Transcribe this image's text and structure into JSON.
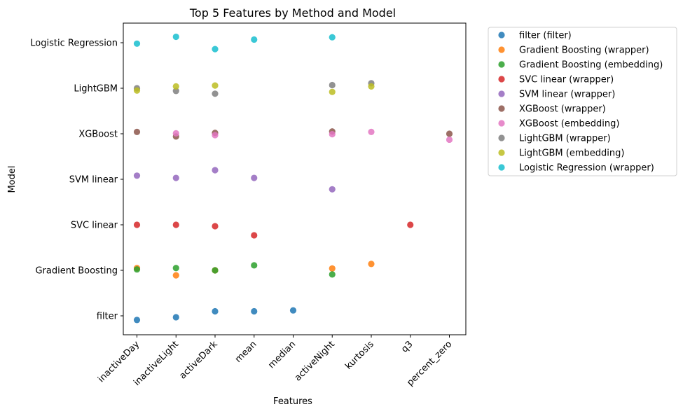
{
  "chart_data": {
    "type": "scatter",
    "title": "Top 5 Features by Method and Model",
    "xlabel": "Features",
    "ylabel": "Model",
    "x_categories": [
      "inactiveDay",
      "inactiveLight",
      "activeDark",
      "mean",
      "median",
      "activeNight",
      "kurtosis",
      "q3",
      "percent_zero"
    ],
    "y_categories": [
      "filter",
      "Gradient Boosting",
      "SVC linear",
      "SVM linear",
      "XGBoost",
      "LightGBM",
      "Logistic Regression"
    ],
    "grid": false,
    "legend_position": "outside right",
    "series": [
      {
        "name": "filter (filter)",
        "color": "#1f77b4",
        "points": [
          {
            "x": "inactiveDay",
            "y": "filter",
            "jitter": -0.09
          },
          {
            "x": "inactiveLight",
            "y": "filter",
            "jitter": -0.03
          },
          {
            "x": "activeDark",
            "y": "filter",
            "jitter": 0.1
          },
          {
            "x": "mean",
            "y": "filter",
            "jitter": 0.1
          },
          {
            "x": "median",
            "y": "filter",
            "jitter": 0.12
          }
        ]
      },
      {
        "name": "Gradient Boosting (wrapper)",
        "color": "#ff7f0e",
        "points": [
          {
            "x": "inactiveDay",
            "y": "Gradient Boosting",
            "jitter": 0.05
          },
          {
            "x": "inactiveLight",
            "y": "Gradient Boosting",
            "jitter": -0.11
          },
          {
            "x": "activeDark",
            "y": "Gradient Boosting",
            "jitter": 0.0
          },
          {
            "x": "activeNight",
            "y": "Gradient Boosting",
            "jitter": 0.04
          },
          {
            "x": "kurtosis",
            "y": "Gradient Boosting",
            "jitter": 0.14
          }
        ]
      },
      {
        "name": "Gradient Boosting (embedding)",
        "color": "#2ca02c",
        "points": [
          {
            "x": "inactiveDay",
            "y": "Gradient Boosting",
            "jitter": 0.02
          },
          {
            "x": "inactiveLight",
            "y": "Gradient Boosting",
            "jitter": 0.05
          },
          {
            "x": "activeDark",
            "y": "Gradient Boosting",
            "jitter": 0.0
          },
          {
            "x": "mean",
            "y": "Gradient Boosting",
            "jitter": 0.11
          },
          {
            "x": "activeNight",
            "y": "Gradient Boosting",
            "jitter": -0.09
          }
        ]
      },
      {
        "name": "SVC linear (wrapper)",
        "color": "#d62728",
        "points": [
          {
            "x": "inactiveDay",
            "y": "SVC linear",
            "jitter": 0.0
          },
          {
            "x": "inactiveLight",
            "y": "SVC linear",
            "jitter": 0.0
          },
          {
            "x": "activeDark",
            "y": "SVC linear",
            "jitter": -0.03
          },
          {
            "x": "mean",
            "y": "SVC linear",
            "jitter": -0.23
          },
          {
            "x": "q3",
            "y": "SVC linear",
            "jitter": 0.0
          }
        ]
      },
      {
        "name": "SVM linear (wrapper)",
        "color": "#9467bd",
        "points": [
          {
            "x": "inactiveDay",
            "y": "SVM linear",
            "jitter": 0.08
          },
          {
            "x": "inactiveLight",
            "y": "SVM linear",
            "jitter": 0.03
          },
          {
            "x": "activeDark",
            "y": "SVM linear",
            "jitter": 0.2
          },
          {
            "x": "mean",
            "y": "SVM linear",
            "jitter": 0.03
          },
          {
            "x": "activeNight",
            "y": "SVM linear",
            "jitter": -0.22
          }
        ]
      },
      {
        "name": "XGBoost (wrapper)",
        "color": "#8c564b",
        "points": [
          {
            "x": "inactiveDay",
            "y": "XGBoost",
            "jitter": 0.04
          },
          {
            "x": "inactiveLight",
            "y": "XGBoost",
            "jitter": -0.06
          },
          {
            "x": "activeDark",
            "y": "XGBoost",
            "jitter": 0.02
          },
          {
            "x": "activeNight",
            "y": "XGBoost",
            "jitter": 0.05
          },
          {
            "x": "percent_zero",
            "y": "XGBoost",
            "jitter": 0.0
          }
        ]
      },
      {
        "name": "XGBoost (embedding)",
        "color": "#e377c2",
        "points": [
          {
            "x": "inactiveLight",
            "y": "XGBoost",
            "jitter": 0.01
          },
          {
            "x": "activeDark",
            "y": "XGBoost",
            "jitter": -0.03
          },
          {
            "x": "activeNight",
            "y": "XGBoost",
            "jitter": -0.01
          },
          {
            "x": "kurtosis",
            "y": "XGBoost",
            "jitter": 0.04
          },
          {
            "x": "percent_zero",
            "y": "XGBoost",
            "jitter": -0.13
          }
        ]
      },
      {
        "name": "LightGBM (wrapper)",
        "color": "#7f7f7f",
        "points": [
          {
            "x": "inactiveDay",
            "y": "LightGBM",
            "jitter": 0.0
          },
          {
            "x": "inactiveLight",
            "y": "LightGBM",
            "jitter": -0.06
          },
          {
            "x": "activeDark",
            "y": "LightGBM",
            "jitter": -0.12
          },
          {
            "x": "activeNight",
            "y": "LightGBM",
            "jitter": 0.07
          },
          {
            "x": "kurtosis",
            "y": "LightGBM",
            "jitter": 0.11
          }
        ]
      },
      {
        "name": "LightGBM (embedding)",
        "color": "#bcbd22",
        "points": [
          {
            "x": "inactiveDay",
            "y": "LightGBM",
            "jitter": -0.05
          },
          {
            "x": "inactiveLight",
            "y": "LightGBM",
            "jitter": 0.04
          },
          {
            "x": "activeDark",
            "y": "LightGBM",
            "jitter": 0.06
          },
          {
            "x": "activeNight",
            "y": "LightGBM",
            "jitter": -0.08
          },
          {
            "x": "kurtosis",
            "y": "LightGBM",
            "jitter": 0.04
          }
        ]
      },
      {
        "name": "Logistic Regression (wrapper)",
        "color": "#17becf",
        "points": [
          {
            "x": "inactiveDay",
            "y": "Logistic Regression",
            "jitter": -0.02
          },
          {
            "x": "inactiveLight",
            "y": "Logistic Regression",
            "jitter": 0.13
          },
          {
            "x": "activeDark",
            "y": "Logistic Regression",
            "jitter": -0.14
          },
          {
            "x": "mean",
            "y": "Logistic Regression",
            "jitter": 0.07
          },
          {
            "x": "activeNight",
            "y": "Logistic Regression",
            "jitter": 0.12
          }
        ]
      }
    ]
  }
}
